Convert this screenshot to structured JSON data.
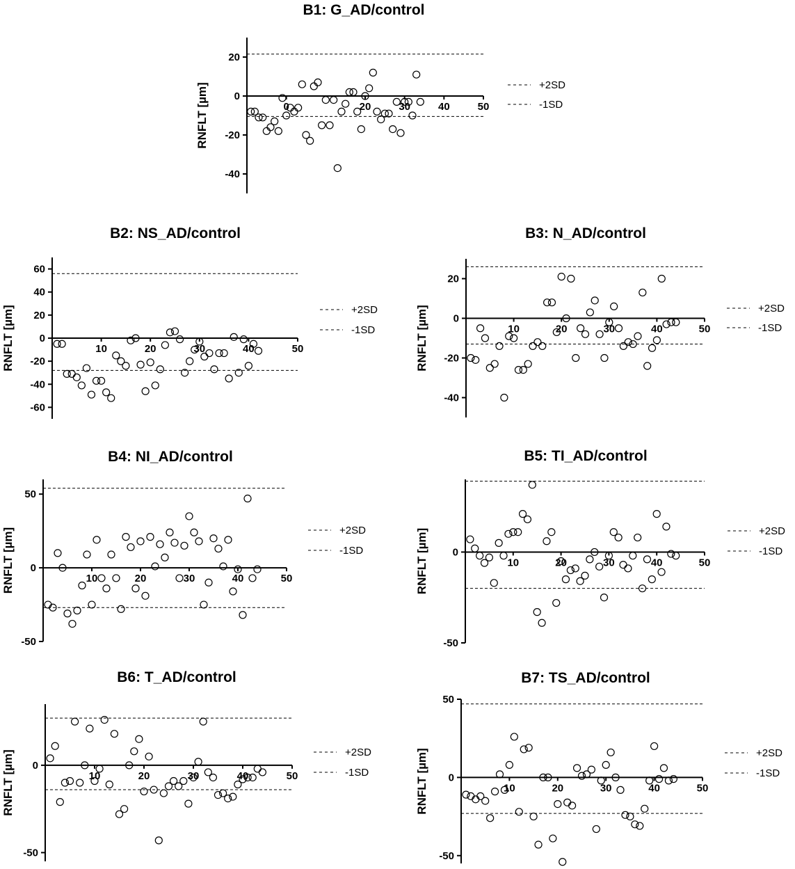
{
  "figure": {
    "background": "#ffffff",
    "point_color": "#000000"
  },
  "chart_data": [
    {
      "id": "B1",
      "type": "scatter",
      "title": "B1: G_AD/control",
      "xlabel": "",
      "ylabel": "RNFLT [µm]",
      "xlim": [
        -10,
        50
      ],
      "ylim": [
        -50,
        30
      ],
      "xticks": [
        0,
        20,
        30,
        40,
        50
      ],
      "yticks": [
        -40,
        -20,
        0,
        20
      ],
      "reference_lines": [
        {
          "name": "+2SD",
          "y": 21.5
        },
        {
          "name": "-1SD",
          "y": -10.5
        }
      ],
      "legend": [
        "+2SD",
        "-1SD"
      ],
      "x": [
        -9,
        -8,
        -7,
        -6,
        -5,
        -4,
        -3,
        -2,
        -1,
        0,
        1,
        2,
        3,
        4,
        5,
        6,
        7,
        8,
        9,
        10,
        11,
        12,
        13,
        14,
        15,
        16,
        17,
        18,
        19,
        20,
        21,
        22,
        23,
        24,
        25,
        26,
        27,
        28,
        29,
        30,
        31,
        32,
        33,
        34
      ],
      "y": [
        -8,
        -8,
        -11,
        -11,
        -18,
        -16,
        -13,
        -18,
        -1,
        -10,
        -6,
        -8,
        -6,
        6,
        -20,
        -23,
        5,
        7,
        -15,
        -2,
        -15,
        -2,
        -37,
        -8,
        -4,
        2,
        2,
        -8,
        -17,
        0,
        4,
        12,
        -8,
        -12,
        -9,
        -9,
        -17,
        -3,
        -19,
        -3,
        -3,
        -10,
        11,
        -3
      ]
    },
    {
      "id": "B2",
      "type": "scatter",
      "title": "B2: NS_AD/control",
      "xlabel": "",
      "ylabel": "RNFLT [µm]",
      "xlim": [
        0,
        50
      ],
      "ylim": [
        -70,
        70
      ],
      "xticks": [
        10,
        20,
        30,
        40,
        50
      ],
      "yticks": [
        -60,
        -40,
        -20,
        0,
        20,
        40,
        60
      ],
      "reference_lines": [
        {
          "name": "+2SD",
          "y": 56
        },
        {
          "name": "-1SD",
          "y": -28
        }
      ],
      "legend": [
        "+2SD",
        "-1SD"
      ],
      "x": [
        1,
        2,
        3,
        4,
        5,
        6,
        7,
        8,
        9,
        10,
        11,
        12,
        13,
        14,
        15,
        16,
        17,
        18,
        19,
        20,
        21,
        22,
        23,
        24,
        25,
        26,
        27,
        28,
        29,
        30,
        31,
        32,
        33,
        34,
        35,
        36,
        37,
        38,
        39,
        40,
        41,
        42
      ],
      "y": [
        -5,
        -5,
        -31,
        -31,
        -34,
        -41,
        -26,
        -49,
        -37,
        -37,
        -47,
        -52,
        -15,
        -20,
        -24,
        -2,
        0,
        -23,
        -46,
        -21,
        -41,
        -27,
        -6,
        5,
        6,
        -1,
        -30,
        -20,
        -10,
        -3,
        -16,
        -13,
        -27,
        -13,
        -13,
        -35,
        1,
        -30,
        -1,
        -24,
        -5,
        -11
      ]
    },
    {
      "id": "B3",
      "type": "scatter",
      "title": "B3: N_AD/control",
      "xlabel": "",
      "ylabel": "RNFLT [µm]",
      "xlim": [
        0,
        50
      ],
      "ylim": [
        -50,
        30
      ],
      "xticks": [
        10,
        20,
        30,
        40,
        50
      ],
      "yticks": [
        -40,
        -20,
        0,
        20
      ],
      "reference_lines": [
        {
          "name": "+2SD",
          "y": 26
        },
        {
          "name": "-1SD",
          "y": -13
        }
      ],
      "legend": [
        "+2SD",
        "-1SD"
      ],
      "x": [
        1,
        2,
        3,
        4,
        5,
        6,
        7,
        8,
        9,
        10,
        11,
        12,
        13,
        14,
        15,
        16,
        17,
        18,
        19,
        20,
        21,
        22,
        23,
        24,
        25,
        26,
        27,
        28,
        29,
        30,
        31,
        32,
        33,
        34,
        35,
        36,
        37,
        38,
        39,
        40,
        41,
        42,
        43,
        44
      ],
      "y": [
        -20,
        -21,
        -5,
        -10,
        -25,
        -23,
        -14,
        -40,
        -9,
        -10,
        -26,
        -26,
        -23,
        -14,
        -12,
        -14,
        8,
        8,
        -7,
        21,
        0,
        20,
        -20,
        -5,
        -8,
        3,
        9,
        -8,
        -20,
        -2,
        6,
        -5,
        -14,
        -12,
        -13,
        -9,
        13,
        -24,
        -15,
        -11,
        20,
        -3,
        -2,
        -2
      ]
    },
    {
      "id": "B4",
      "type": "scatter",
      "title": "B4: NI_AD/control",
      "xlabel": "",
      "ylabel": "RNFLT [µm]",
      "xlim": [
        0,
        50
      ],
      "ylim": [
        -50,
        60
      ],
      "xticks": [
        10,
        20,
        30,
        40,
        50
      ],
      "yticks": [
        -50,
        0,
        50
      ],
      "reference_lines": [
        {
          "name": "+2SD",
          "y": 54
        },
        {
          "name": "-1SD",
          "y": -27
        }
      ],
      "legend": [
        "+2SD",
        "-1SD"
      ],
      "x": [
        1,
        2,
        3,
        4,
        5,
        6,
        7,
        8,
        9,
        10,
        11,
        12,
        13,
        14,
        15,
        16,
        17,
        18,
        19,
        20,
        21,
        22,
        23,
        24,
        25,
        26,
        27,
        28,
        29,
        30,
        31,
        32,
        33,
        34,
        35,
        36,
        37,
        38,
        39,
        40,
        41,
        42,
        43,
        44
      ],
      "y": [
        -25,
        -27,
        10,
        0,
        -31,
        -38,
        -29,
        -12,
        9,
        -25,
        19,
        -7,
        -14,
        9,
        -7,
        -28,
        21,
        14,
        -14,
        18,
        -19,
        21,
        1,
        16,
        7,
        24,
        17,
        -7,
        15,
        35,
        24,
        18,
        -25,
        -10,
        20,
        13,
        1,
        19,
        -16,
        -1,
        -32,
        47,
        -7,
        -1
      ]
    },
    {
      "id": "B5",
      "type": "scatter",
      "title": "B5: TI_AD/control",
      "xlabel": "",
      "ylabel": "RNFLT [µm]",
      "xlim": [
        0,
        50
      ],
      "ylim": [
        -50,
        40
      ],
      "xticks": [
        10,
        20,
        30,
        40,
        50
      ],
      "yticks": [
        -50,
        0
      ],
      "reference_lines": [
        {
          "name": "+2SD",
          "y": 39
        },
        {
          "name": "-1SD",
          "y": -20
        }
      ],
      "legend": [
        "+2SD",
        "-1SD"
      ],
      "x": [
        1,
        2,
        3,
        4,
        5,
        6,
        7,
        8,
        9,
        10,
        11,
        12,
        13,
        14,
        15,
        16,
        17,
        18,
        19,
        20,
        21,
        22,
        23,
        24,
        25,
        26,
        27,
        28,
        29,
        30,
        31,
        32,
        33,
        34,
        35,
        36,
        37,
        38,
        39,
        40,
        41,
        42,
        43,
        44
      ],
      "y": [
        7,
        2,
        -2,
        -6,
        -3,
        -17,
        5,
        -2,
        10,
        11,
        11,
        21,
        18,
        37,
        -33,
        -39,
        6,
        11,
        -28,
        -5,
        -15,
        -10,
        -9,
        -16,
        -13,
        -4,
        0,
        -8,
        -25,
        -2,
        11,
        8,
        -7,
        -9,
        -2,
        8,
        -20,
        -4,
        -15,
        21,
        -11,
        14,
        -1,
        -2
      ]
    },
    {
      "id": "B6",
      "type": "scatter",
      "title": "B6: T_AD/control",
      "xlabel": "",
      "ylabel": "RNFLT [µm]",
      "xlim": [
        0,
        50
      ],
      "ylim": [
        -55,
        35
      ],
      "xticks": [
        10,
        20,
        30,
        40,
        50
      ],
      "yticks": [
        -50,
        0
      ],
      "reference_lines": [
        {
          "name": "+2SD",
          "y": 27
        },
        {
          "name": "-1SD",
          "y": -14
        }
      ],
      "legend": [
        "+2SD",
        "-1SD"
      ],
      "x": [
        1,
        2,
        3,
        4,
        5,
        6,
        7,
        8,
        9,
        10,
        11,
        12,
        13,
        14,
        15,
        16,
        17,
        18,
        19,
        20,
        21,
        22,
        23,
        24,
        25,
        26,
        27,
        28,
        29,
        30,
        31,
        32,
        33,
        34,
        35,
        36,
        37,
        38,
        39,
        40,
        41,
        42,
        43,
        44
      ],
      "y": [
        4,
        11,
        -21,
        -10,
        -9,
        25,
        -10,
        0,
        21,
        -9,
        -2,
        26,
        -11,
        18,
        -28,
        -25,
        0,
        8,
        15,
        -15,
        5,
        -14,
        -43,
        -16,
        -12,
        -9,
        -12,
        -9,
        -22,
        -7,
        2,
        25,
        -4,
        -7,
        -17,
        -16,
        -19,
        -18,
        -11,
        -8,
        -7,
        -7,
        -2,
        -4
      ]
    },
    {
      "id": "B7",
      "type": "scatter",
      "title": "B7: TS_AD/control",
      "xlabel": "",
      "ylabel": "RNFLT [µm]",
      "xlim": [
        0,
        50
      ],
      "ylim": [
        -55,
        50
      ],
      "xticks": [
        10,
        20,
        30,
        40,
        50
      ],
      "yticks": [
        -50,
        0,
        50
      ],
      "reference_lines": [
        {
          "name": "+2SD",
          "y": 47
        },
        {
          "name": "-1SD",
          "y": -23
        }
      ],
      "legend": [
        "+2SD",
        "-1SD"
      ],
      "x": [
        1,
        2,
        3,
        4,
        5,
        6,
        7,
        8,
        9,
        10,
        11,
        12,
        13,
        14,
        15,
        16,
        17,
        18,
        19,
        20,
        21,
        22,
        23,
        24,
        25,
        26,
        27,
        28,
        29,
        30,
        31,
        32,
        33,
        34,
        35,
        36,
        37,
        38,
        39,
        40,
        41,
        42,
        43,
        44
      ],
      "y": [
        -11,
        -12,
        -14,
        -12,
        -15,
        -26,
        -9,
        2,
        -8,
        8,
        26,
        -22,
        18,
        19,
        -25,
        -43,
        0,
        0,
        -39,
        -17,
        -54,
        -16,
        -18,
        6,
        1,
        2,
        5,
        -33,
        -2,
        8,
        16,
        0,
        -8,
        -24,
        -25,
        -30,
        -31,
        -20,
        -2,
        20,
        -1,
        6,
        -2,
        -1
      ]
    }
  ]
}
